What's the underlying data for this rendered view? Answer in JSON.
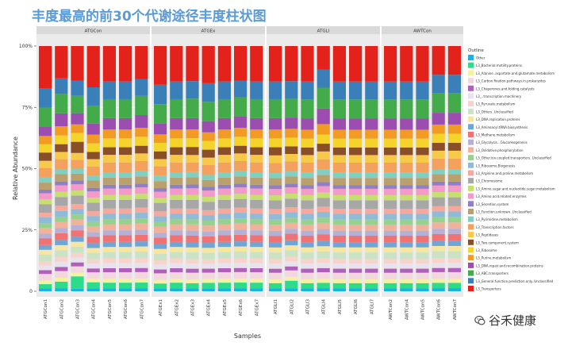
{
  "page": {
    "title": "丰度最高的前30个代谢途径丰度柱状图",
    "watermark": "谷禾健康",
    "watermark_icon": "wechat-icon"
  },
  "chart_data": {
    "type": "bar",
    "subtype": "stacked-percent-faceted",
    "ylabel": "Relative Abundance",
    "xlabel": "Samples",
    "ylim": [
      0,
      1
    ],
    "yticks": [
      0,
      0.25,
      0.5,
      0.75,
      1.0
    ],
    "ytick_labels": [
      "0",
      "25%",
      "50%",
      "75%",
      "100%"
    ],
    "legend_title": "Outline",
    "legend_position": "right",
    "panels": [
      {
        "name": "ATGCon",
        "samples": [
          "ATGCon1",
          "ATGCon2",
          "ATGCon3",
          "ATGCon4",
          "ATGCon5",
          "ATGCon6",
          "ATGCon7"
        ]
      },
      {
        "name": "ATGEx",
        "samples": [
          "ATGEx1",
          "ATGEx2",
          "ATGEx3",
          "ATGEx4",
          "ATGEx5",
          "ATGEx6",
          "ATGEx7"
        ]
      },
      {
        "name": "ATGLI",
        "samples": [
          "ATGLI1",
          "ATGLI2",
          "ATGLI3",
          "ATGLI4",
          "ATGLI5",
          "ATGLI6",
          "ATGLI7"
        ]
      },
      {
        "name": "AWTCon",
        "samples": [
          "AWTCon2",
          "AWTCon4",
          "AWTCon5",
          "AWTCon6",
          "AWTCon7"
        ]
      }
    ],
    "categories": [
      {
        "name": "Other",
        "color": "#19b2e6"
      },
      {
        "name": "L3_Bacterial.motility.proteins",
        "color": "#2ddc8a"
      },
      {
        "name": "L3_Alanine..aspartate.and.glutamate.metabolism",
        "color": "#f4f2a0"
      },
      {
        "name": "L3_Carbon.fixation.pathways.in.prokaryotes",
        "color": "#f2d7df"
      },
      {
        "name": "L3_Chaperones.and.folding.catalysts",
        "color": "#b060b8"
      },
      {
        "name": "L3_..transcription.machinery",
        "color": "#e8e2ee"
      },
      {
        "name": "L3_Pyruvate.metabolism",
        "color": "#f8d3c9"
      },
      {
        "name": "L3_Others..Unclassified",
        "color": "#c9e3c4"
      },
      {
        "name": "L3_DNA.replication.proteins",
        "color": "#f6e6a0"
      },
      {
        "name": "L3_Aminoacyl.tRNA.biosynthesis",
        "color": "#6fa6d6"
      },
      {
        "name": "L3_Methane.metabolism",
        "color": "#f07272"
      },
      {
        "name": "L3_Glycolysis...Gluconeogenesis",
        "color": "#b5b0d6"
      },
      {
        "name": "L3_Oxidative.phosphorylation",
        "color": "#f0b29a"
      },
      {
        "name": "L3_Other.ion.coupled.transporters..Unclassified",
        "color": "#97d18e"
      },
      {
        "name": "L3_Ribosome.Biogenesis",
        "color": "#8fbbd9"
      },
      {
        "name": "L3_Arginine.and.proline.metabolism",
        "color": "#f5a89c"
      },
      {
        "name": "L3_Chromosome",
        "color": "#a7a7a7"
      },
      {
        "name": "L3_Amino.sugar.and.nucleotide.sugar.metabolism",
        "color": "#c6df6f"
      },
      {
        "name": "L3_Amino.acid.related.enzymes",
        "color": "#f39ac8"
      },
      {
        "name": "L3_Secretion.system",
        "color": "#8f7fc4"
      },
      {
        "name": "L3_Function.unknown..Unclassified",
        "color": "#b9a06c"
      },
      {
        "name": "L3_Pyrimidine.metabolism",
        "color": "#7fcfc2"
      },
      {
        "name": "L3_Transcription.factors",
        "color": "#f4a15e"
      },
      {
        "name": "L3_Peptidases",
        "color": "#f7c948"
      },
      {
        "name": "L3_Two.component.system",
        "color": "#8b4f28"
      },
      {
        "name": "L3_Ribosome",
        "color": "#f4d32a"
      },
      {
        "name": "L3_Purine.metabolism",
        "color": "#f29b24"
      },
      {
        "name": "L3_DNA.repair.and.recombination.proteins",
        "color": "#9b4db0"
      },
      {
        "name": "L3_ABC.transporters",
        "color": "#44ab4a"
      },
      {
        "name": "L3_General.function.prediction.only..Unclassified",
        "color": "#3a7fb8"
      },
      {
        "name": "L3_Transporters",
        "color": "#e3221c"
      }
    ],
    "stack_order": "Other at bottom (y=0); L3_Transporters at top (y=1.0)",
    "values_by_sample": {
      "ATGCon1": [
        0.012,
        0.018,
        0.015,
        0.028,
        0.016,
        0.02,
        0.018,
        0.028,
        0.02,
        0.02,
        0.028,
        0.02,
        0.025,
        0.02,
        0.024,
        0.02,
        0.036,
        0.02,
        0.026,
        0.015,
        0.03,
        0.022,
        0.04,
        0.03,
        0.035,
        0.035,
        0.035,
        0.04,
        0.08,
        0.08,
        0.18
      ],
      "ATGCon2": [
        0.012,
        0.025,
        0.015,
        0.026,
        0.016,
        0.02,
        0.018,
        0.026,
        0.02,
        0.02,
        0.026,
        0.02,
        0.024,
        0.02,
        0.022,
        0.02,
        0.034,
        0.02,
        0.025,
        0.015,
        0.028,
        0.02,
        0.038,
        0.028,
        0.03,
        0.034,
        0.035,
        0.05,
        0.075,
        0.06,
        0.125
      ],
      "ATGCon3": [
        0.01,
        0.05,
        0.015,
        0.025,
        0.016,
        0.02,
        0.018,
        0.025,
        0.02,
        0.02,
        0.026,
        0.02,
        0.024,
        0.02,
        0.022,
        0.02,
        0.034,
        0.02,
        0.025,
        0.015,
        0.028,
        0.02,
        0.035,
        0.028,
        0.045,
        0.035,
        0.035,
        0.045,
        0.07,
        0.06,
        0.14
      ],
      "ATGCon4": [
        0.012,
        0.025,
        0.015,
        0.026,
        0.016,
        0.02,
        0.018,
        0.026,
        0.02,
        0.02,
        0.026,
        0.02,
        0.024,
        0.02,
        0.022,
        0.02,
        0.035,
        0.02,
        0.026,
        0.015,
        0.03,
        0.02,
        0.038,
        0.03,
        0.03,
        0.035,
        0.036,
        0.045,
        0.075,
        0.075,
        0.17
      ],
      "ATGCon5": [
        0.012,
        0.022,
        0.015,
        0.026,
        0.016,
        0.02,
        0.018,
        0.026,
        0.02,
        0.02,
        0.026,
        0.02,
        0.024,
        0.02,
        0.022,
        0.02,
        0.034,
        0.02,
        0.025,
        0.015,
        0.028,
        0.02,
        0.04,
        0.03,
        0.03,
        0.035,
        0.035,
        0.045,
        0.075,
        0.07,
        0.14
      ],
      "ATGCon6": [
        0.012,
        0.022,
        0.015,
        0.026,
        0.016,
        0.02,
        0.018,
        0.026,
        0.02,
        0.02,
        0.026,
        0.02,
        0.024,
        0.02,
        0.022,
        0.02,
        0.034,
        0.02,
        0.025,
        0.015,
        0.028,
        0.02,
        0.04,
        0.03,
        0.03,
        0.035,
        0.035,
        0.045,
        0.075,
        0.07,
        0.14
      ],
      "ATGCon7": [
        0.012,
        0.022,
        0.015,
        0.026,
        0.016,
        0.02,
        0.018,
        0.026,
        0.02,
        0.02,
        0.026,
        0.02,
        0.024,
        0.02,
        0.022,
        0.02,
        0.034,
        0.02,
        0.025,
        0.015,
        0.028,
        0.02,
        0.04,
        0.03,
        0.03,
        0.035,
        0.035,
        0.05,
        0.075,
        0.065,
        0.13
      ],
      "ATGEx1": [
        0.012,
        0.02,
        0.015,
        0.027,
        0.016,
        0.02,
        0.018,
        0.027,
        0.02,
        0.02,
        0.027,
        0.02,
        0.025,
        0.02,
        0.023,
        0.02,
        0.035,
        0.02,
        0.026,
        0.015,
        0.029,
        0.021,
        0.04,
        0.03,
        0.032,
        0.035,
        0.035,
        0.045,
        0.08,
        0.08,
        0.16
      ],
      "ATGEx2": [
        0.012,
        0.022,
        0.015,
        0.026,
        0.016,
        0.02,
        0.018,
        0.026,
        0.02,
        0.02,
        0.026,
        0.02,
        0.024,
        0.02,
        0.022,
        0.02,
        0.034,
        0.02,
        0.025,
        0.015,
        0.028,
        0.02,
        0.04,
        0.03,
        0.03,
        0.035,
        0.035,
        0.045,
        0.075,
        0.07,
        0.14
      ],
      "ATGEx3": [
        0.012,
        0.02,
        0.015,
        0.027,
        0.016,
        0.02,
        0.018,
        0.027,
        0.02,
        0.02,
        0.027,
        0.02,
        0.025,
        0.02,
        0.023,
        0.02,
        0.035,
        0.02,
        0.026,
        0.015,
        0.029,
        0.021,
        0.038,
        0.03,
        0.032,
        0.035,
        0.035,
        0.045,
        0.078,
        0.07,
        0.14
      ],
      "ATGEx4": [
        0.012,
        0.022,
        0.015,
        0.026,
        0.016,
        0.02,
        0.018,
        0.026,
        0.02,
        0.02,
        0.026,
        0.02,
        0.024,
        0.02,
        0.022,
        0.02,
        0.034,
        0.02,
        0.025,
        0.015,
        0.028,
        0.02,
        0.04,
        0.03,
        0.032,
        0.035,
        0.035,
        0.045,
        0.078,
        0.075,
        0.15
      ],
      "ATGEx5": [
        0.012,
        0.022,
        0.015,
        0.026,
        0.016,
        0.02,
        0.018,
        0.026,
        0.02,
        0.02,
        0.026,
        0.02,
        0.024,
        0.02,
        0.022,
        0.02,
        0.034,
        0.02,
        0.025,
        0.015,
        0.028,
        0.02,
        0.04,
        0.03,
        0.03,
        0.035,
        0.035,
        0.045,
        0.075,
        0.07,
        0.14
      ],
      "ATGEx6": [
        0.012,
        0.022,
        0.015,
        0.026,
        0.016,
        0.02,
        0.018,
        0.026,
        0.02,
        0.02,
        0.026,
        0.02,
        0.024,
        0.02,
        0.022,
        0.02,
        0.034,
        0.02,
        0.025,
        0.015,
        0.028,
        0.02,
        0.04,
        0.03,
        0.03,
        0.035,
        0.035,
        0.045,
        0.075,
        0.065,
        0.135
      ],
      "ATGEx7": [
        0.012,
        0.022,
        0.015,
        0.026,
        0.016,
        0.02,
        0.018,
        0.026,
        0.02,
        0.02,
        0.026,
        0.02,
        0.024,
        0.02,
        0.022,
        0.02,
        0.034,
        0.02,
        0.025,
        0.015,
        0.028,
        0.02,
        0.04,
        0.03,
        0.03,
        0.035,
        0.035,
        0.045,
        0.075,
        0.07,
        0.14
      ],
      "ATGLI1": [
        0.012,
        0.02,
        0.015,
        0.026,
        0.016,
        0.02,
        0.018,
        0.026,
        0.02,
        0.02,
        0.026,
        0.02,
        0.024,
        0.02,
        0.022,
        0.02,
        0.034,
        0.02,
        0.025,
        0.015,
        0.028,
        0.02,
        0.04,
        0.03,
        0.032,
        0.035,
        0.035,
        0.045,
        0.075,
        0.07,
        0.14
      ],
      "ATGLI2": [
        0.012,
        0.03,
        0.015,
        0.026,
        0.016,
        0.02,
        0.018,
        0.026,
        0.02,
        0.02,
        0.026,
        0.02,
        0.024,
        0.02,
        0.022,
        0.02,
        0.034,
        0.02,
        0.025,
        0.015,
        0.028,
        0.02,
        0.04,
        0.03,
        0.03,
        0.035,
        0.035,
        0.045,
        0.075,
        0.07,
        0.14
      ],
      "ATGLI3": [
        0.012,
        0.02,
        0.015,
        0.026,
        0.016,
        0.02,
        0.018,
        0.026,
        0.02,
        0.02,
        0.026,
        0.02,
        0.024,
        0.02,
        0.022,
        0.02,
        0.034,
        0.02,
        0.025,
        0.015,
        0.028,
        0.02,
        0.04,
        0.03,
        0.03,
        0.035,
        0.035,
        0.045,
        0.075,
        0.07,
        0.14
      ],
      "ATGLI4": [
        0.012,
        0.02,
        0.015,
        0.026,
        0.016,
        0.02,
        0.018,
        0.026,
        0.02,
        0.02,
        0.026,
        0.02,
        0.024,
        0.02,
        0.022,
        0.02,
        0.034,
        0.02,
        0.025,
        0.015,
        0.028,
        0.02,
        0.04,
        0.03,
        0.03,
        0.035,
        0.04,
        0.06,
        0.08,
        0.07,
        0.09
      ],
      "ATGLI5": [
        0.012,
        0.02,
        0.015,
        0.026,
        0.016,
        0.02,
        0.018,
        0.026,
        0.02,
        0.02,
        0.026,
        0.02,
        0.024,
        0.02,
        0.022,
        0.02,
        0.034,
        0.02,
        0.025,
        0.015,
        0.028,
        0.02,
        0.04,
        0.03,
        0.03,
        0.035,
        0.035,
        0.045,
        0.075,
        0.07,
        0.14
      ],
      "ATGLI6": [
        0.012,
        0.02,
        0.015,
        0.026,
        0.016,
        0.02,
        0.018,
        0.026,
        0.02,
        0.02,
        0.026,
        0.02,
        0.024,
        0.02,
        0.022,
        0.02,
        0.034,
        0.02,
        0.025,
        0.015,
        0.028,
        0.02,
        0.04,
        0.03,
        0.03,
        0.035,
        0.035,
        0.045,
        0.075,
        0.07,
        0.14
      ],
      "ATGLI7": [
        0.012,
        0.02,
        0.015,
        0.026,
        0.016,
        0.02,
        0.018,
        0.026,
        0.02,
        0.02,
        0.026,
        0.02,
        0.024,
        0.02,
        0.022,
        0.02,
        0.034,
        0.02,
        0.025,
        0.015,
        0.028,
        0.02,
        0.04,
        0.03,
        0.03,
        0.035,
        0.035,
        0.045,
        0.075,
        0.07,
        0.14
      ],
      "AWTCon2": [
        0.012,
        0.02,
        0.015,
        0.026,
        0.016,
        0.02,
        0.018,
        0.026,
        0.02,
        0.02,
        0.026,
        0.02,
        0.024,
        0.02,
        0.022,
        0.02,
        0.034,
        0.02,
        0.025,
        0.015,
        0.028,
        0.02,
        0.04,
        0.03,
        0.03,
        0.035,
        0.035,
        0.045,
        0.075,
        0.07,
        0.14
      ],
      "AWTCon4": [
        0.012,
        0.02,
        0.015,
        0.026,
        0.016,
        0.02,
        0.018,
        0.026,
        0.02,
        0.02,
        0.026,
        0.02,
        0.024,
        0.02,
        0.022,
        0.02,
        0.034,
        0.02,
        0.025,
        0.015,
        0.028,
        0.02,
        0.04,
        0.03,
        0.03,
        0.035,
        0.035,
        0.045,
        0.075,
        0.07,
        0.14
      ],
      "AWTCon5": [
        0.012,
        0.02,
        0.015,
        0.026,
        0.016,
        0.02,
        0.018,
        0.026,
        0.02,
        0.02,
        0.026,
        0.02,
        0.024,
        0.02,
        0.022,
        0.02,
        0.034,
        0.02,
        0.025,
        0.015,
        0.028,
        0.02,
        0.04,
        0.03,
        0.03,
        0.035,
        0.035,
        0.045,
        0.075,
        0.07,
        0.14
      ],
      "AWTCon6": [
        0.012,
        0.02,
        0.015,
        0.026,
        0.016,
        0.02,
        0.018,
        0.026,
        0.02,
        0.02,
        0.026,
        0.02,
        0.024,
        0.02,
        0.022,
        0.02,
        0.034,
        0.02,
        0.025,
        0.015,
        0.028,
        0.02,
        0.04,
        0.03,
        0.03,
        0.035,
        0.035,
        0.045,
        0.075,
        0.07,
        0.11
      ],
      "AWTCon7": [
        0.012,
        0.02,
        0.015,
        0.026,
        0.016,
        0.02,
        0.018,
        0.026,
        0.02,
        0.02,
        0.026,
        0.02,
        0.024,
        0.02,
        0.022,
        0.02,
        0.034,
        0.02,
        0.025,
        0.015,
        0.028,
        0.02,
        0.04,
        0.03,
        0.03,
        0.035,
        0.035,
        0.045,
        0.075,
        0.07,
        0.11
      ]
    }
  }
}
